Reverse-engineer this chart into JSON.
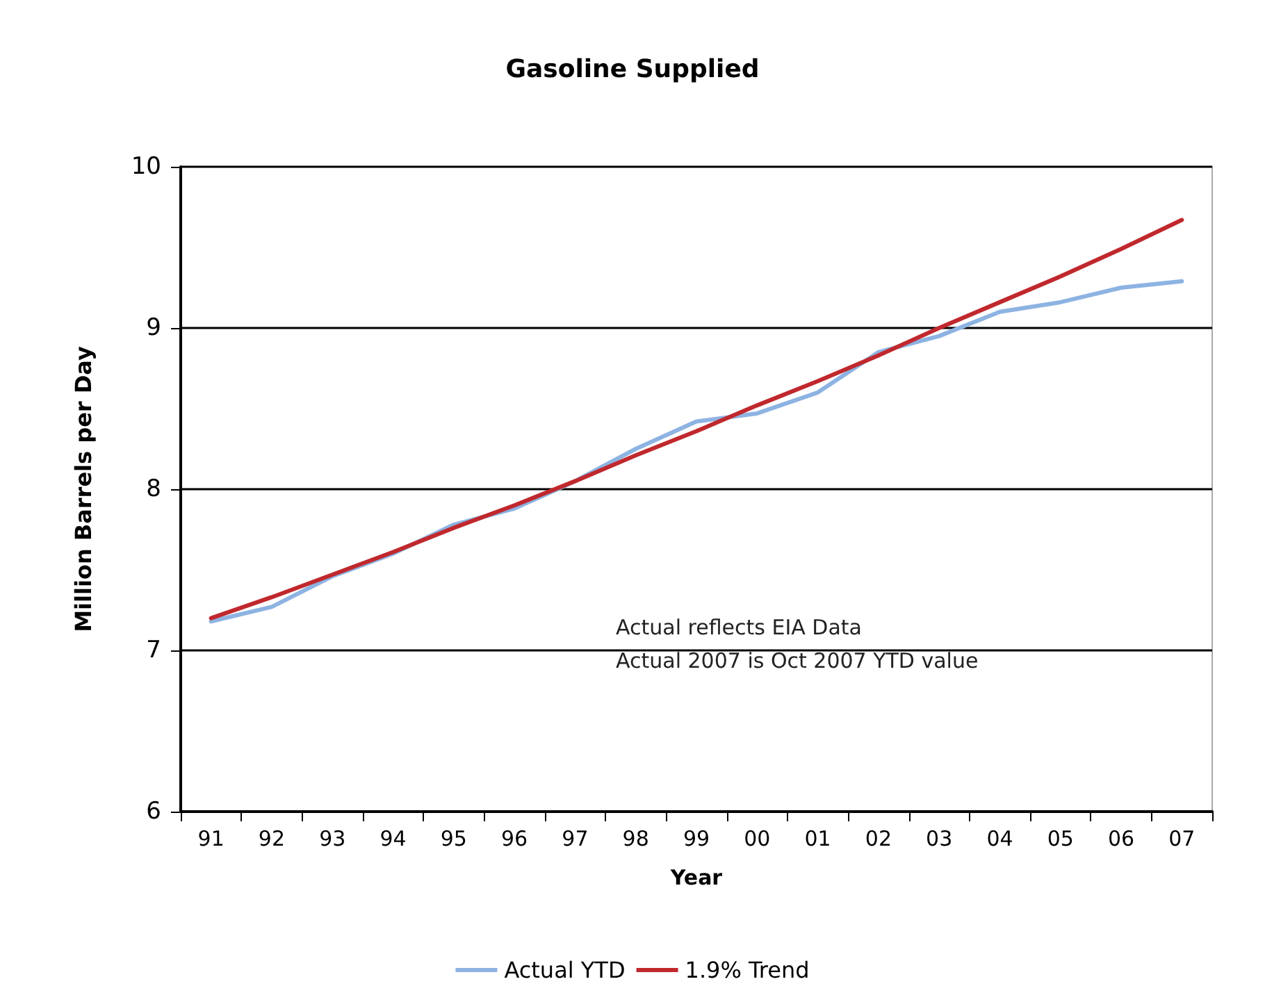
{
  "chart_data": {
    "type": "line",
    "title": "Gasoline Supplied",
    "xlabel": "Year",
    "ylabel": "Million Barrels per Day",
    "categories": [
      "91",
      "92",
      "93",
      "94",
      "95",
      "96",
      "97",
      "98",
      "99",
      "00",
      "01",
      "02",
      "03",
      "04",
      "05",
      "06",
      "07"
    ],
    "series": [
      {
        "name": "Actual YTD",
        "color": "#8db3e2",
        "values": [
          7.18,
          7.27,
          7.46,
          7.6,
          7.78,
          7.88,
          8.05,
          8.25,
          8.42,
          8.47,
          8.6,
          8.85,
          8.95,
          9.1,
          9.16,
          9.25,
          9.29
        ]
      },
      {
        "name": "1.9% Trend",
        "color": "#c0282d",
        "values": [
          7.2,
          7.33,
          7.47,
          7.61,
          7.76,
          7.9,
          8.05,
          8.21,
          8.36,
          8.52,
          8.67,
          8.83,
          9.0,
          9.16,
          9.32,
          9.49,
          9.67
        ]
      }
    ],
    "annotations": [
      "Actual reflects EIA Data",
      "Actual 2007 is Oct 2007 YTD value"
    ],
    "ylim": [
      6,
      10
    ],
    "yticks": [
      6,
      7,
      8,
      9,
      10
    ],
    "grid": "y",
    "legend": "bottom",
    "marker": "none",
    "line_style": "solid"
  }
}
